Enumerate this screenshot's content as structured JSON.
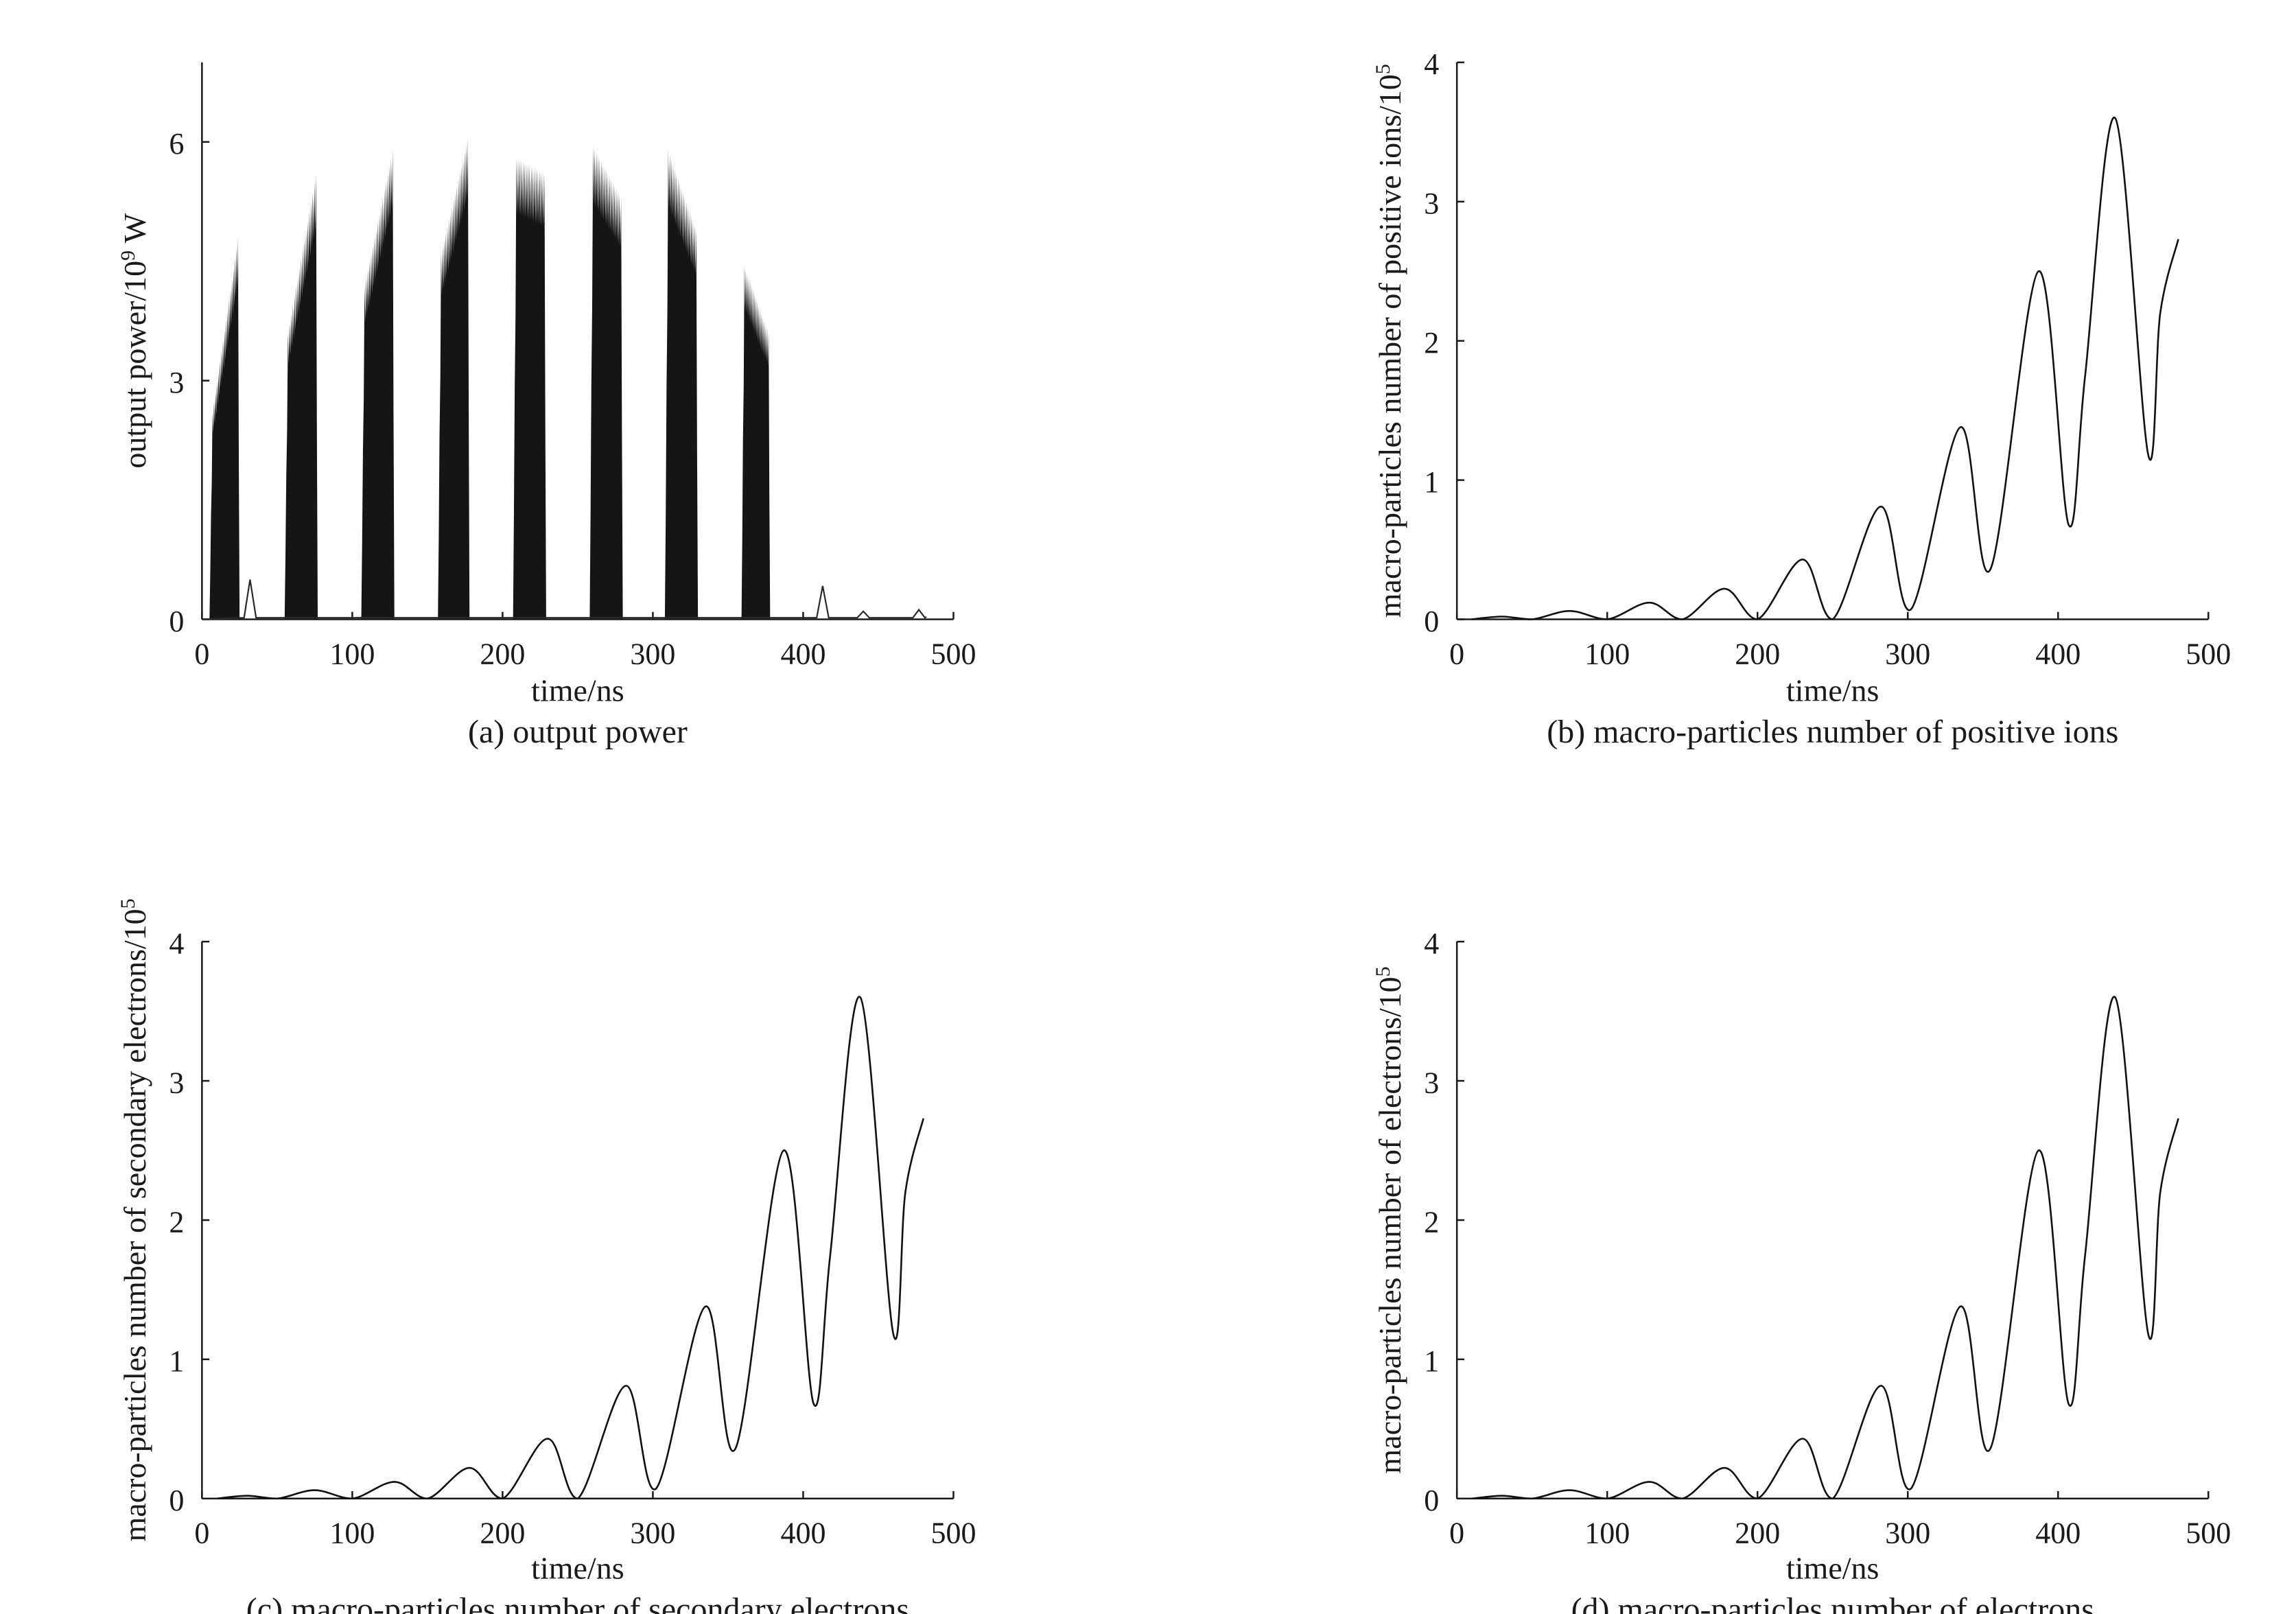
{
  "chart_data": [
    {
      "id": "a",
      "type": "area",
      "caption": "(a) output power",
      "xlabel": "time/ns",
      "ylabel_main": "output power/10",
      "ylabel_exp": "9",
      "ylabel_unit": " W",
      "xlim": [
        0,
        500
      ],
      "ylim": [
        0,
        7
      ],
      "xticks": [
        0,
        100,
        200,
        300,
        400,
        500
      ],
      "yticks": [
        0,
        3,
        6
      ],
      "grid": false,
      "pulses": [
        {
          "start": 5,
          "end": 25,
          "rise_from": 2.6,
          "peak": 4.8
        },
        {
          "start": 55,
          "end": 77,
          "rise_from": 3.6,
          "peak": 5.6
        },
        {
          "start": 106,
          "end": 128,
          "rise_from": 4.2,
          "peak": 5.9
        },
        {
          "start": 157,
          "end": 178,
          "rise_from": 4.6,
          "peak": 6.05
        },
        {
          "start": 207,
          "end": 229,
          "rise_from": 5.8,
          "peak": 5.6
        },
        {
          "start": 258,
          "end": 280,
          "rise_from": 5.95,
          "peak": 5.3
        },
        {
          "start": 308,
          "end": 330,
          "rise_from": 5.9,
          "peak": 4.9
        },
        {
          "start": 359,
          "end": 378,
          "rise_from": 4.45,
          "peak": 3.6
        }
      ],
      "baseline_bumps": [
        {
          "x": 32,
          "y": 0.5
        },
        {
          "x": 413,
          "y": 0.42
        },
        {
          "x": 440,
          "y": 0.1
        },
        {
          "x": 477,
          "y": 0.12
        }
      ]
    },
    {
      "id": "b",
      "type": "line",
      "caption": "(b) macro-particles number of positive ions",
      "xlabel": "time/ns",
      "ylabel_main": "macro-particles number of positive ions/10",
      "ylabel_exp": "5",
      "ylabel_unit": "",
      "xlim": [
        0,
        500
      ],
      "ylim": [
        0,
        4
      ],
      "xticks": [
        0,
        100,
        200,
        300,
        400,
        500
      ],
      "yticks": [
        0,
        1,
        2,
        3,
        4
      ],
      "grid": false,
      "series": [
        {
          "x": [
            10,
            30,
            50,
            75,
            100,
            128,
            150,
            178,
            200,
            230,
            250,
            282,
            302,
            335,
            355,
            387,
            407,
            418,
            438,
            460,
            468,
            480
          ],
          "y": [
            0,
            0.02,
            0,
            0.06,
            0,
            0.12,
            0,
            0.22,
            0,
            0.43,
            0,
            0.81,
            0.07,
            1.38,
            0.36,
            2.5,
            0.68,
            1.75,
            3.6,
            1.18,
            2.2,
            2.73
          ]
        }
      ]
    },
    {
      "id": "c",
      "type": "line",
      "caption": "(c) macro-particles number of secondary electrons",
      "xlabel": "time/ns",
      "ylabel_main": "macro-particles number of secondary electrons/10",
      "ylabel_exp": "5",
      "ylabel_unit": "",
      "xlim": [
        0,
        500
      ],
      "ylim": [
        0,
        4
      ],
      "xticks": [
        0,
        100,
        200,
        300,
        400,
        500
      ],
      "yticks": [
        0,
        1,
        2,
        3,
        4
      ],
      "grid": false,
      "series": [
        {
          "x": [
            10,
            30,
            50,
            75,
            100,
            128,
            150,
            178,
            200,
            230,
            250,
            282,
            302,
            335,
            355,
            387,
            407,
            418,
            438,
            460,
            468,
            480
          ],
          "y": [
            0,
            0.02,
            0,
            0.06,
            0,
            0.12,
            0,
            0.22,
            0,
            0.43,
            0,
            0.81,
            0.07,
            1.38,
            0.36,
            2.5,
            0.68,
            1.75,
            3.6,
            1.18,
            2.2,
            2.73
          ]
        }
      ]
    },
    {
      "id": "d",
      "type": "line",
      "caption": "(d) macro-particles number of electrons",
      "xlabel": "time/ns",
      "ylabel_main": "macro-particles number of electrons/10",
      "ylabel_exp": "5",
      "ylabel_unit": "",
      "xlim": [
        0,
        500
      ],
      "ylim": [
        0,
        4
      ],
      "xticks": [
        0,
        100,
        200,
        300,
        400,
        500
      ],
      "yticks": [
        0,
        1,
        2,
        3,
        4
      ],
      "grid": false,
      "series": [
        {
          "x": [
            10,
            30,
            50,
            75,
            100,
            128,
            150,
            178,
            200,
            230,
            250,
            282,
            302,
            335,
            355,
            387,
            407,
            418,
            438,
            460,
            468,
            480
          ],
          "y": [
            0,
            0.02,
            0,
            0.06,
            0,
            0.12,
            0,
            0.22,
            0,
            0.43,
            0,
            0.81,
            0.07,
            1.38,
            0.36,
            2.5,
            0.68,
            1.75,
            3.6,
            1.18,
            2.2,
            2.73
          ]
        }
      ]
    }
  ]
}
